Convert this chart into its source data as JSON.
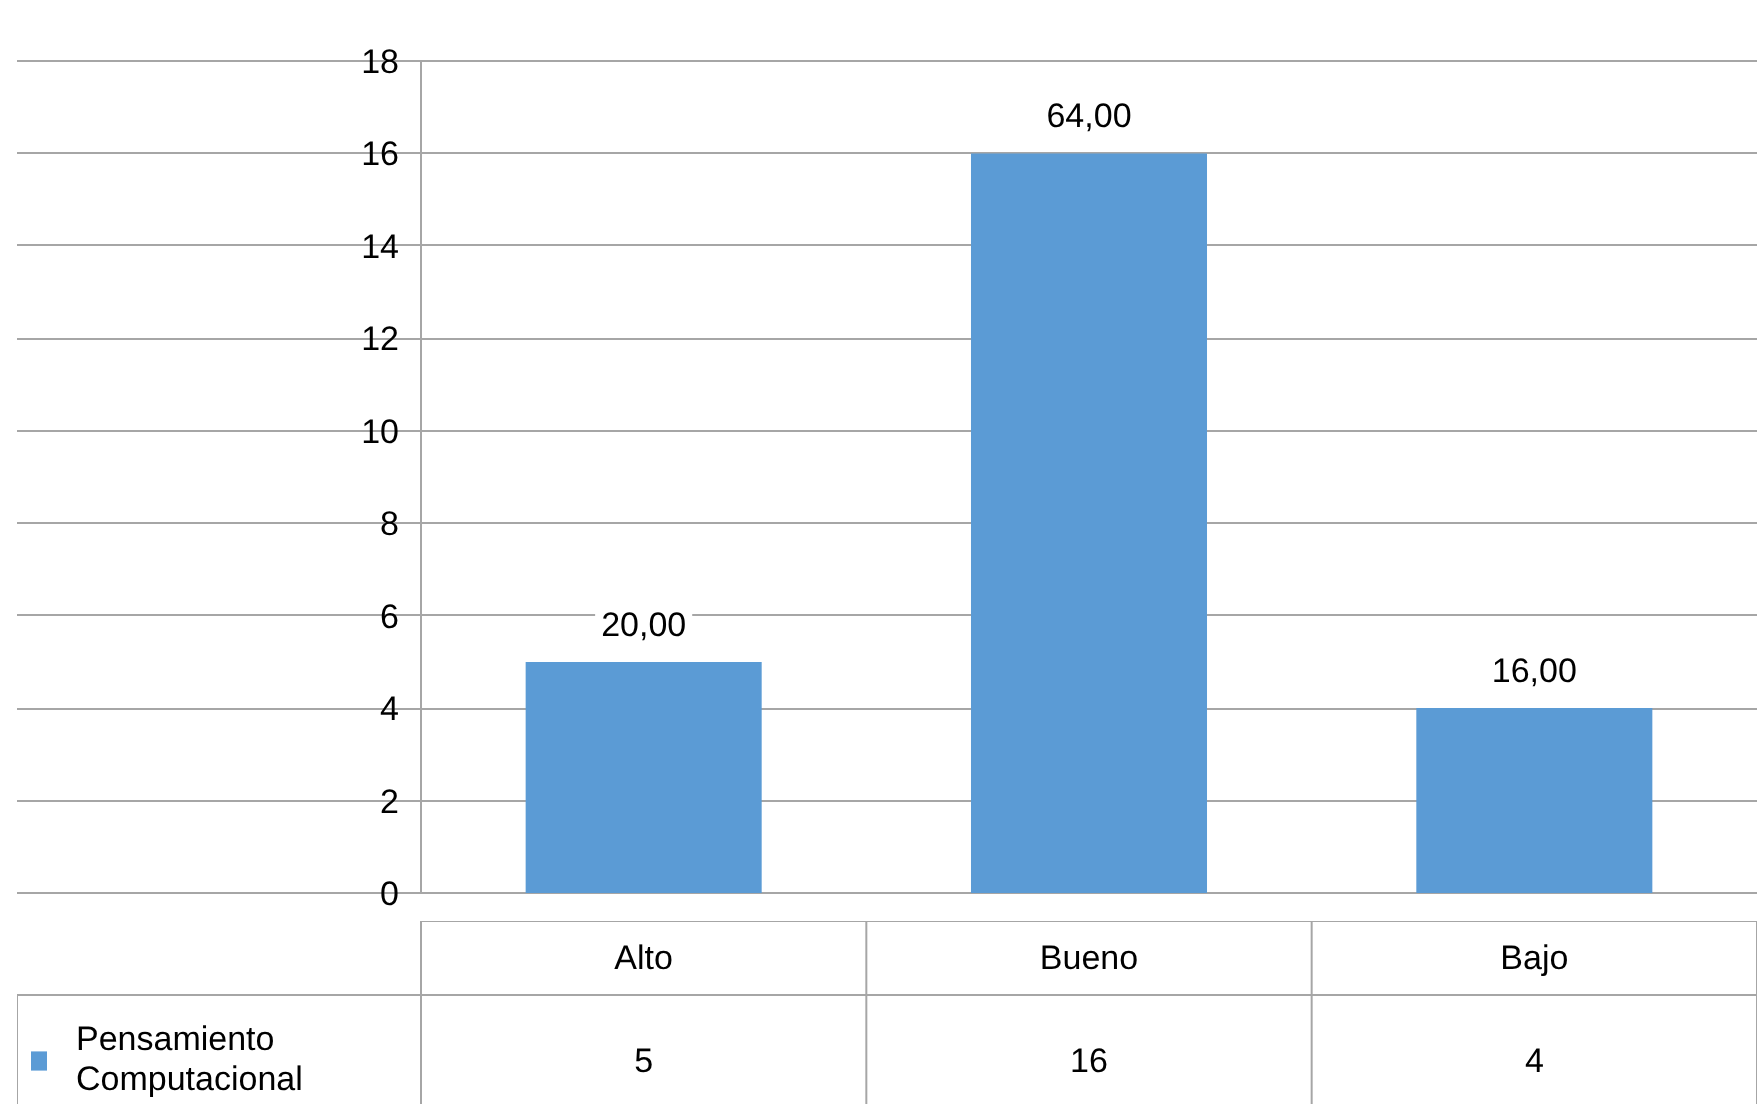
{
  "chart_data": {
    "type": "bar",
    "categories": [
      "Alto",
      "Bueno",
      "Bajo"
    ],
    "series": [
      {
        "name": "Pensamiento Computacional",
        "color": "#5b9bd5",
        "values": [
          5,
          16,
          4
        ]
      }
    ],
    "annotations": [
      "20,00",
      "64,00",
      "16,00"
    ],
    "ylim": [
      0,
      18
    ],
    "yticks": [
      0,
      2,
      4,
      6,
      8,
      10,
      12,
      14,
      16,
      18
    ],
    "grid": "y",
    "legend": "bottom left",
    "data_labels": true
  }
}
